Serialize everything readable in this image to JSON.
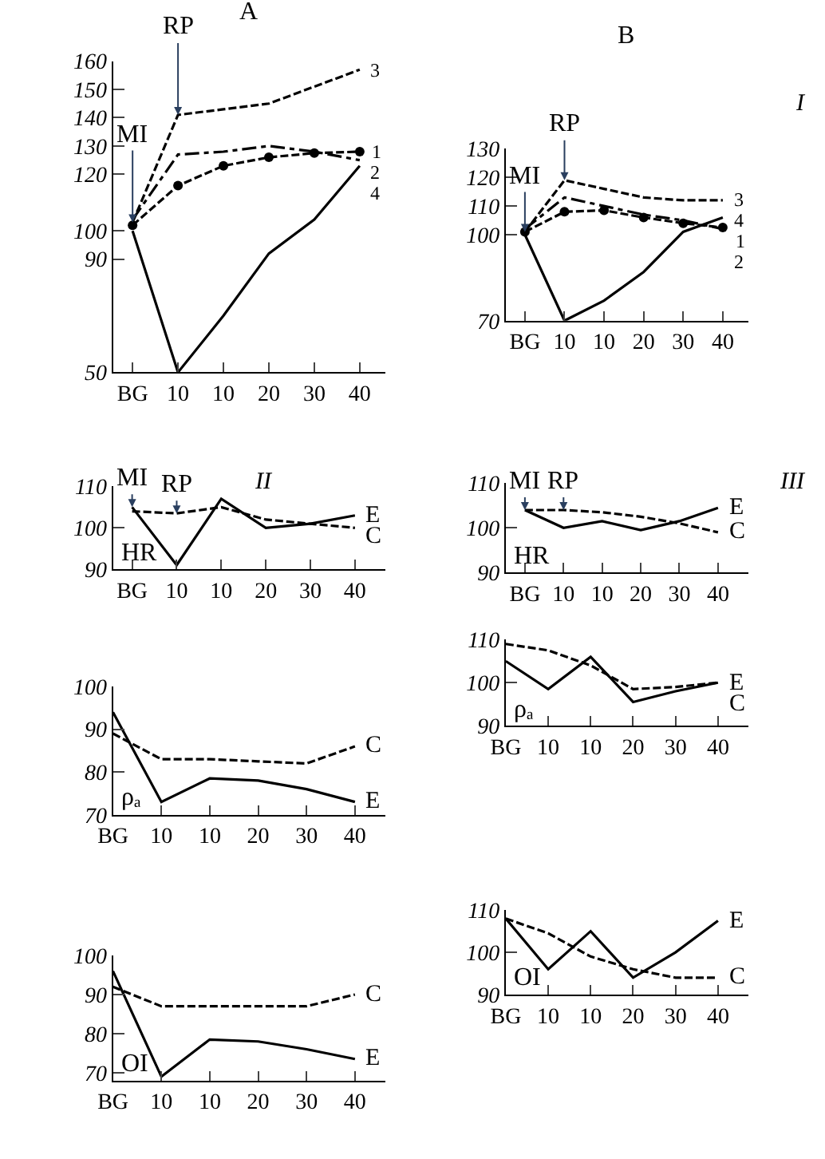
{
  "chart_data": [
    {
      "type": "line",
      "title": "A",
      "categories": [
        "BG",
        "10",
        "10",
        "20",
        "30",
        "40"
      ],
      "ylim": [
        50,
        160
      ],
      "yticks": [
        50,
        90,
        100,
        120,
        130,
        140,
        150,
        160
      ],
      "series": [
        {
          "name": "1",
          "color": "#000000",
          "line_style": "dashed",
          "marker": "circle",
          "values": [
            102,
            116,
            123,
            126,
            127.5,
            128
          ]
        },
        {
          "name": "2",
          "color": "#000000",
          "line_style": "dashdot",
          "values": [
            104,
            127,
            128,
            130,
            128,
            125
          ]
        },
        {
          "name": "3",
          "color": "#000000",
          "line_style": "dashed",
          "values": [
            103,
            141,
            143,
            145,
            151,
            157
          ]
        },
        {
          "name": "4",
          "color": "#000000",
          "line_style": "solid",
          "values": [
            100,
            50,
            70,
            92,
            104,
            123
          ]
        }
      ],
      "annotations": [
        {
          "text": "MI",
          "x": "BG",
          "y": 103
        },
        {
          "text": "RP",
          "x": "10",
          "y": 141
        }
      ]
    },
    {
      "type": "line",
      "title": "B",
      "categories": [
        "BG",
        "10",
        "10",
        "20",
        "30",
        "40"
      ],
      "ylim": [
        70,
        130
      ],
      "yticks": [
        70,
        100,
        110,
        120,
        130
      ],
      "series": [
        {
          "name": "1",
          "color": "#000000",
          "line_style": "dashed",
          "marker": "circle",
          "values": [
            101,
            108,
            108.5,
            106,
            104,
            102.5
          ]
        },
        {
          "name": "2",
          "color": "#000000",
          "line_style": "dashdot",
          "values": [
            102,
            113,
            110,
            107,
            105,
            102
          ]
        },
        {
          "name": "3",
          "color": "#000000",
          "line_style": "dashed",
          "values": [
            101,
            119,
            116,
            113,
            112,
            112
          ]
        },
        {
          "name": "4",
          "color": "#000000",
          "line_style": "solid",
          "values": [
            100,
            70,
            77,
            87,
            101,
            106
          ]
        }
      ],
      "annotations": [
        {
          "text": "MI",
          "x": "BG",
          "y": 101
        },
        {
          "text": "RP",
          "x": "10",
          "y": 119
        },
        "I"
      ]
    },
    {
      "type": "line",
      "ylabel": "HR",
      "categories": [
        "BG",
        "10",
        "10",
        "20",
        "30",
        "40"
      ],
      "ylim": [
        90,
        110
      ],
      "yticks": [
        90,
        100,
        110
      ],
      "series": [
        {
          "name": "E",
          "color": "#000000",
          "line_style": "solid",
          "values": [
            105,
            91,
            107,
            100,
            101,
            103
          ]
        },
        {
          "name": "C",
          "color": "#000000",
          "line_style": "dashed",
          "values": [
            104,
            103.5,
            105,
            102,
            101,
            100
          ]
        }
      ],
      "annotations": [
        {
          "text": "MI",
          "x": "BG",
          "y": 105
        },
        {
          "text": "RP",
          "x": "10",
          "y": 103.5
        },
        "II"
      ]
    },
    {
      "type": "line",
      "ylabel": "HR",
      "categories": [
        "BG",
        "10",
        "10",
        "20",
        "30",
        "40"
      ],
      "ylim": [
        90,
        110
      ],
      "yticks": [
        90,
        100,
        110
      ],
      "series": [
        {
          "name": "E",
          "color": "#000000",
          "line_style": "solid",
          "values": [
            104,
            100,
            101.5,
            99.5,
            101.5,
            104.5
          ]
        },
        {
          "name": "C",
          "color": "#000000",
          "line_style": "dashed",
          "values": [
            104,
            104,
            103.5,
            102.5,
            101,
            99
          ]
        }
      ],
      "annotations": [
        {
          "text": "MI",
          "x": "BG",
          "y": 104
        },
        {
          "text": "RP",
          "x": "10",
          "y": 104
        },
        "III"
      ]
    },
    {
      "type": "line",
      "ylabel": "ρₐ",
      "categories": [
        "BG",
        "10",
        "10",
        "20",
        "30",
        "40"
      ],
      "ylim": [
        70,
        100
      ],
      "yticks": [
        70,
        80,
        90,
        100
      ],
      "series": [
        {
          "name": "E",
          "color": "#000000",
          "line_style": "solid",
          "values": [
            94,
            73,
            78.5,
            78,
            76,
            73
          ]
        },
        {
          "name": "C",
          "color": "#000000",
          "line_style": "dashed",
          "values": [
            89,
            83,
            83,
            82.5,
            82,
            86
          ]
        }
      ]
    },
    {
      "type": "line",
      "ylabel": "ρₐ",
      "categories": [
        "BG",
        "10",
        "10",
        "20",
        "30",
        "40"
      ],
      "ylim": [
        90,
        110
      ],
      "yticks": [
        90,
        100,
        110
      ],
      "series": [
        {
          "name": "E",
          "color": "#000000",
          "line_style": "solid",
          "values": [
            105,
            98.5,
            106,
            95.5,
            98,
            100
          ]
        },
        {
          "name": "C",
          "color": "#000000",
          "line_style": "dashed",
          "values": [
            109,
            107.5,
            104,
            98.5,
            99,
            100
          ]
        }
      ]
    },
    {
      "type": "line",
      "ylabel": "OI",
      "categories": [
        "BG",
        "10",
        "10",
        "20",
        "30",
        "40"
      ],
      "ylim": [
        68,
        100
      ],
      "yticks": [
        70,
        80,
        90,
        100
      ],
      "series": [
        {
          "name": "E",
          "color": "#000000",
          "line_style": "solid",
          "values": [
            96,
            69,
            78.5,
            78,
            76,
            73.5
          ]
        },
        {
          "name": "C",
          "color": "#000000",
          "line_style": "dashed",
          "values": [
            92,
            87,
            87,
            87,
            87,
            90
          ]
        }
      ]
    },
    {
      "type": "line",
      "ylabel": "OI",
      "categories": [
        "BG",
        "10",
        "10",
        "20",
        "30",
        "40"
      ],
      "ylim": [
        90,
        110
      ],
      "yticks": [
        90,
        100,
        110
      ],
      "series": [
        {
          "name": "E",
          "color": "#000000",
          "line_style": "solid",
          "values": [
            108,
            96,
            105,
            94,
            100,
            107.5
          ]
        },
        {
          "name": "C",
          "color": "#000000",
          "line_style": "dashed",
          "values": [
            108,
            104.5,
            99,
            96,
            94,
            94
          ]
        }
      ]
    }
  ]
}
